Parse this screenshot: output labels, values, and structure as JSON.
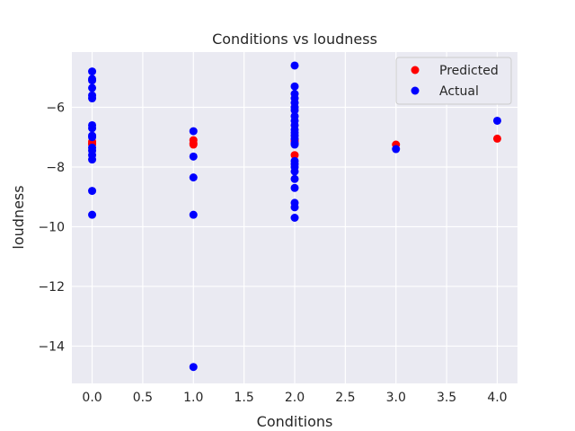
{
  "chart_data": {
    "type": "scatter",
    "title": "Conditions vs loudness",
    "xlabel": "Conditions",
    "ylabel": "loudness",
    "xlim": [
      -0.2,
      4.2
    ],
    "ylim": [
      -15.25,
      -4.15
    ],
    "xticks": [
      0.0,
      0.5,
      1.0,
      1.5,
      2.0,
      2.5,
      3.0,
      3.5,
      4.0
    ],
    "xtick_labels": [
      "0.0",
      "0.5",
      "1.0",
      "1.5",
      "2.0",
      "2.5",
      "3.0",
      "3.5",
      "4.0"
    ],
    "yticks": [
      -14,
      -12,
      -10,
      -8,
      -6
    ],
    "ytick_labels": [
      "−14",
      "−12",
      "−10",
      "−8",
      "−6"
    ],
    "grid": true,
    "legend": {
      "position": "top-right"
    },
    "series": [
      {
        "name": "Predicted",
        "color": "#ff0000",
        "points": [
          {
            "x": 0,
            "y": -7.15
          },
          {
            "x": 0,
            "y": -7.2
          },
          {
            "x": 0,
            "y": -7.25
          },
          {
            "x": 1,
            "y": -7.1
          },
          {
            "x": 1,
            "y": -7.2
          },
          {
            "x": 1,
            "y": -7.25
          },
          {
            "x": 2,
            "y": -7.1
          },
          {
            "x": 2,
            "y": -7.15
          },
          {
            "x": 2,
            "y": -7.6
          },
          {
            "x": 3,
            "y": -7.25
          },
          {
            "x": 4,
            "y": -7.05
          }
        ]
      },
      {
        "name": "Actual",
        "color": "#0000ff",
        "points": [
          {
            "x": 0,
            "y": -4.8
          },
          {
            "x": 0,
            "y": -5.05
          },
          {
            "x": 0,
            "y": -5.1
          },
          {
            "x": 0,
            "y": -5.35
          },
          {
            "x": 0,
            "y": -5.6
          },
          {
            "x": 0,
            "y": -5.7
          },
          {
            "x": 0,
            "y": -6.6
          },
          {
            "x": 0,
            "y": -6.7
          },
          {
            "x": 0,
            "y": -6.95
          },
          {
            "x": 0,
            "y": -7.0
          },
          {
            "x": 0,
            "y": -7.35
          },
          {
            "x": 0,
            "y": -7.45
          },
          {
            "x": 0,
            "y": -7.6
          },
          {
            "x": 0,
            "y": -7.75
          },
          {
            "x": 0,
            "y": -8.8
          },
          {
            "x": 0,
            "y": -9.6
          },
          {
            "x": 1,
            "y": -6.8
          },
          {
            "x": 1,
            "y": -7.65
          },
          {
            "x": 1,
            "y": -8.35
          },
          {
            "x": 1,
            "y": -9.6
          },
          {
            "x": 1,
            "y": -14.7
          },
          {
            "x": 2,
            "y": -4.6
          },
          {
            "x": 2,
            "y": -5.3
          },
          {
            "x": 2,
            "y": -5.55
          },
          {
            "x": 2,
            "y": -5.7
          },
          {
            "x": 2,
            "y": -5.85
          },
          {
            "x": 2,
            "y": -6.0
          },
          {
            "x": 2,
            "y": -6.1
          },
          {
            "x": 2,
            "y": -6.3
          },
          {
            "x": 2,
            "y": -6.45
          },
          {
            "x": 2,
            "y": -6.6
          },
          {
            "x": 2,
            "y": -6.75
          },
          {
            "x": 2,
            "y": -6.85
          },
          {
            "x": 2,
            "y": -6.95
          },
          {
            "x": 2,
            "y": -7.05
          },
          {
            "x": 2,
            "y": -7.2
          },
          {
            "x": 2,
            "y": -7.25
          },
          {
            "x": 2,
            "y": -7.8
          },
          {
            "x": 2,
            "y": -7.9
          },
          {
            "x": 2,
            "y": -8.0
          },
          {
            "x": 2,
            "y": -8.15
          },
          {
            "x": 2,
            "y": -8.4
          },
          {
            "x": 2,
            "y": -8.7
          },
          {
            "x": 2,
            "y": -9.2
          },
          {
            "x": 2,
            "y": -9.35
          },
          {
            "x": 2,
            "y": -9.7
          },
          {
            "x": 3,
            "y": -7.4
          },
          {
            "x": 4,
            "y": -6.45
          }
        ]
      }
    ]
  }
}
